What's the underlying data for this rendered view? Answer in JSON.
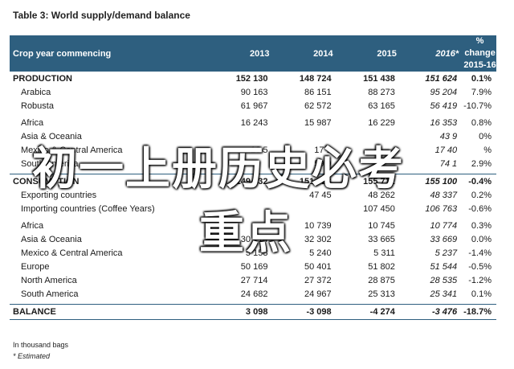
{
  "title": "Table 3: World supply/demand balance",
  "header": {
    "label": "Crop year commencing",
    "years": [
      "2013",
      "2014",
      "2015",
      "2016*"
    ],
    "change_line1": "% change",
    "change_line2": "2015-16"
  },
  "rows": [
    {
      "kind": "total",
      "label": "PRODUCTION",
      "values": [
        "152 130",
        "148 724",
        "151 438",
        "151 624"
      ],
      "change": "0.1%"
    },
    {
      "kind": "item",
      "label": "Arabica",
      "values": [
        "90 163",
        "86 151",
        "88 273",
        "95 204"
      ],
      "change": "7.9%"
    },
    {
      "kind": "item",
      "label": "Robusta",
      "values": [
        "61 967",
        "62 572",
        "63 165",
        "56 419"
      ],
      "change": "-10.7%"
    },
    {
      "kind": "gap"
    },
    {
      "kind": "item",
      "label": "Africa",
      "values": [
        "16 243",
        "15 987",
        "16 229",
        "16 353"
      ],
      "change": "0.8%"
    },
    {
      "kind": "item",
      "label": "Asia & Oceania",
      "values": [
        "",
        "",
        "",
        "43 9"
      ],
      "change": "0%"
    },
    {
      "kind": "item",
      "label": "Mexico & Central America",
      "values": [
        "16 5",
        "17 1",
        "",
        "17 40"
      ],
      "change": "%"
    },
    {
      "kind": "item",
      "label": "South America",
      "values": [
        "",
        "59 9",
        "",
        "74 1"
      ],
      "change": "2.9%"
    },
    {
      "kind": "gap"
    },
    {
      "kind": "total",
      "sep": true,
      "label": "CONSUMPTION",
      "values": [
        "149 032",
        "151 823",
        "155 712",
        "155 100"
      ],
      "change": "-0.4%"
    },
    {
      "kind": "item",
      "label": "Exporting countries",
      "values": [
        "",
        "47 45",
        "48 262",
        "48 337"
      ],
      "change": "0.2%"
    },
    {
      "kind": "item",
      "label": "Importing countries (Coffee Years)",
      "values": [
        "",
        "",
        "107 450",
        "106 763"
      ],
      "change": "-0.6%"
    },
    {
      "kind": "gap"
    },
    {
      "kind": "item",
      "label": "Africa",
      "values": [
        "",
        "10 739",
        "10 745",
        "10 774"
      ],
      "change": "0.3%"
    },
    {
      "kind": "item",
      "label": "Asia & Oceania",
      "values": [
        "30 714",
        "32 302",
        "33 665",
        "33 669"
      ],
      "change": "0.0%"
    },
    {
      "kind": "item",
      "label": "Mexico & Central America",
      "values": [
        "5 158",
        "5 240",
        "5 311",
        "5 237"
      ],
      "change": "-1.4%"
    },
    {
      "kind": "item",
      "label": "Europe",
      "values": [
        "50 169",
        "50 401",
        "51 802",
        "51 544"
      ],
      "change": "-0.5%"
    },
    {
      "kind": "item",
      "label": "North America",
      "values": [
        "27 714",
        "27 372",
        "28 875",
        "28 535"
      ],
      "change": "-1.2%"
    },
    {
      "kind": "item",
      "label": "South America",
      "values": [
        "24 682",
        "24 967",
        "25 313",
        "25 341"
      ],
      "change": "0.1%"
    },
    {
      "kind": "gap"
    },
    {
      "kind": "balance",
      "label": "BALANCE",
      "values": [
        "3 098",
        "-3 098",
        "-4 274",
        "-3 476"
      ],
      "change": "-18.7%"
    }
  ],
  "footnotes": [
    "In thousand bags",
    "* Estimated"
  ],
  "watermark": {
    "line1": "初一上册历史必考",
    "line2": "重点"
  },
  "colors": {
    "header_bg": "#2e5f7f",
    "header_text": "#ffffff"
  }
}
